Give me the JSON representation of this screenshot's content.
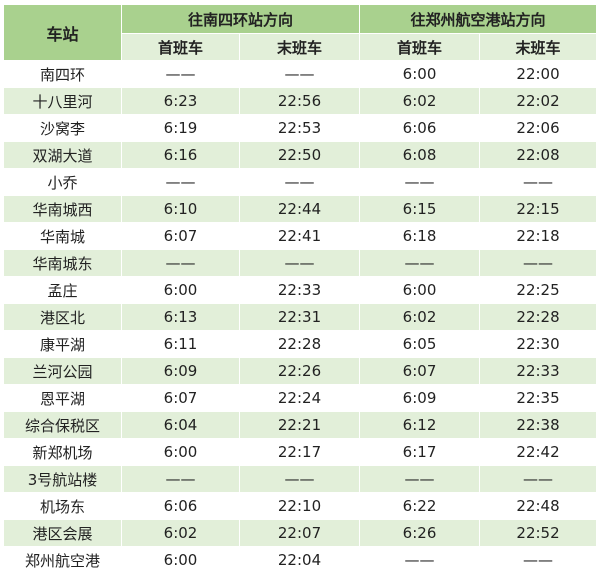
{
  "header": {
    "station_label": "车站",
    "direction_a": "往南四环站方向",
    "direction_b": "往郑州航空港站方向",
    "first_train": "首班车",
    "last_train": "末班车"
  },
  "colors": {
    "header_dark": "#a9d18e",
    "header_light": "#e2efd9",
    "row_alt": "#e2efd9"
  },
  "rows": [
    {
      "station": "南四环",
      "a_first": "——",
      "a_last": "——",
      "b_first": "6:00",
      "b_last": "22:00"
    },
    {
      "station": "十八里河",
      "a_first": "6:23",
      "a_last": "22:56",
      "b_first": "6:02",
      "b_last": "22:02"
    },
    {
      "station": "沙窝李",
      "a_first": "6:19",
      "a_last": "22:53",
      "b_first": "6:06",
      "b_last": "22:06"
    },
    {
      "station": "双湖大道",
      "a_first": "6:16",
      "a_last": "22:50",
      "b_first": "6:08",
      "b_last": "22:08"
    },
    {
      "station": "小乔",
      "a_first": "——",
      "a_last": "——",
      "b_first": "——",
      "b_last": "——"
    },
    {
      "station": "华南城西",
      "a_first": "6:10",
      "a_last": "22:44",
      "b_first": "6:15",
      "b_last": "22:15"
    },
    {
      "station": "华南城",
      "a_first": "6:07",
      "a_last": "22:41",
      "b_first": "6:18",
      "b_last": "22:18"
    },
    {
      "station": "华南城东",
      "a_first": "——",
      "a_last": "——",
      "b_first": "——",
      "b_last": "——"
    },
    {
      "station": "孟庄",
      "a_first": "6:00",
      "a_last": "22:33",
      "b_first": "6:00",
      "b_last": "22:25"
    },
    {
      "station": "港区北",
      "a_first": "6:13",
      "a_last": "22:31",
      "b_first": "6:02",
      "b_last": "22:28"
    },
    {
      "station": "康平湖",
      "a_first": "6:11",
      "a_last": "22:28",
      "b_first": "6:05",
      "b_last": "22:30"
    },
    {
      "station": "兰河公园",
      "a_first": "6:09",
      "a_last": "22:26",
      "b_first": "6:07",
      "b_last": "22:33"
    },
    {
      "station": "恩平湖",
      "a_first": "6:07",
      "a_last": "22:24",
      "b_first": "6:09",
      "b_last": "22:35"
    },
    {
      "station": "综合保税区",
      "a_first": "6:04",
      "a_last": "22:21",
      "b_first": "6:12",
      "b_last": "22:38"
    },
    {
      "station": "新郑机场",
      "a_first": "6:00",
      "a_last": "22:17",
      "b_first": "6:17",
      "b_last": "22:42"
    },
    {
      "station": "3号航站楼",
      "a_first": "——",
      "a_last": "——",
      "b_first": "——",
      "b_last": "——"
    },
    {
      "station": "机场东",
      "a_first": "6:06",
      "a_last": "22:10",
      "b_first": "6:22",
      "b_last": "22:48"
    },
    {
      "station": "港区会展",
      "a_first": "6:02",
      "a_last": "22:07",
      "b_first": "6:26",
      "b_last": "22:52"
    },
    {
      "station": "郑州航空港",
      "a_first": "6:00",
      "a_last": "22:04",
      "b_first": "——",
      "b_last": "——"
    }
  ]
}
